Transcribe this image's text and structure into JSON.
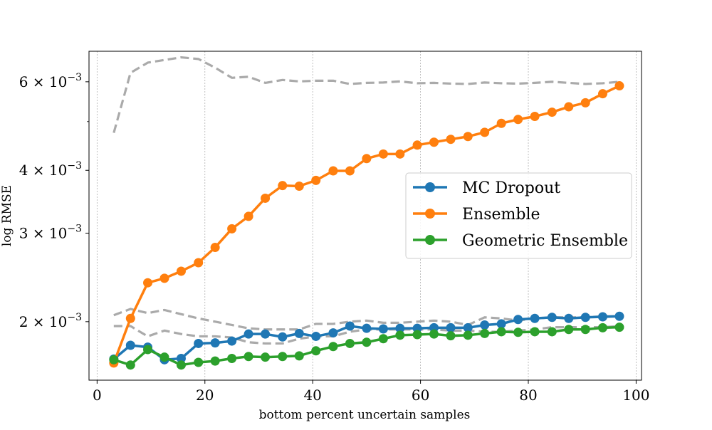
{
  "chart_data": {
    "type": "line",
    "title": "",
    "xlabel": "bottom percent uncertain samples",
    "ylabel": "log RMSE",
    "yscale": "log",
    "xlim": [
      -1.5,
      101
    ],
    "ylim": [
      0.00153,
      0.0069
    ],
    "grid": "vertical-dashed",
    "legend_position": "center-right",
    "x_ticks": [
      {
        "value": 0,
        "label": "0"
      },
      {
        "value": 20,
        "label": "20"
      },
      {
        "value": 40,
        "label": "40"
      },
      {
        "value": 60,
        "label": "60"
      },
      {
        "value": 80,
        "label": "80"
      },
      {
        "value": 100,
        "label": "100"
      }
    ],
    "y_ticks": [
      {
        "value": 0.002,
        "mantissa": "2",
        "base": "10",
        "exponent": "−3"
      },
      {
        "value": 0.003,
        "mantissa": "3",
        "base": "10",
        "exponent": "−3"
      },
      {
        "value": 0.004,
        "mantissa": "4",
        "base": "10",
        "exponent": "−3"
      },
      {
        "value": 0.006,
        "mantissa": "6",
        "base": "10",
        "exponent": "−3"
      }
    ],
    "y_minor_ticks": [
      0.005
    ],
    "x": [
      3.1,
      6.2,
      9.4,
      12.5,
      15.6,
      18.8,
      21.9,
      25.0,
      28.1,
      31.2,
      34.4,
      37.5,
      40.6,
      43.8,
      46.9,
      50.0,
      53.1,
      56.2,
      59.4,
      62.5,
      65.6,
      68.8,
      71.9,
      75.0,
      78.1,
      81.2,
      84.4,
      87.5,
      90.6,
      93.8,
      96.9
    ],
    "series": [
      {
        "name": "MC Dropout",
        "color": "#1f77b4",
        "values": [
          0.001685,
          0.001795,
          0.00178,
          0.00168,
          0.00169,
          0.00181,
          0.001815,
          0.00183,
          0.00189,
          0.00189,
          0.001865,
          0.001895,
          0.00187,
          0.0019,
          0.00196,
          0.00194,
          0.001935,
          0.00194,
          0.00194,
          0.001945,
          0.001945,
          0.001945,
          0.00197,
          0.00198,
          0.00202,
          0.00203,
          0.00204,
          0.00203,
          0.00204,
          0.002045,
          0.00205
        ]
      },
      {
        "name": "Ensemble",
        "color": "#ff7f0e",
        "values": [
          0.001655,
          0.00203,
          0.00239,
          0.00244,
          0.00252,
          0.00262,
          0.00281,
          0.00306,
          0.00324,
          0.00352,
          0.00373,
          0.00372,
          0.00382,
          0.00399,
          0.00399,
          0.00422,
          0.00431,
          0.00431,
          0.00449,
          0.00455,
          0.00461,
          0.00467,
          0.00476,
          0.00496,
          0.00505,
          0.00512,
          0.00522,
          0.00535,
          0.00545,
          0.00568,
          0.00589
        ]
      },
      {
        "name": "Geometric Ensemble",
        "color": "#2ca02c",
        "values": [
          0.00168,
          0.00164,
          0.00176,
          0.0017,
          0.00164,
          0.00166,
          0.00167,
          0.00169,
          0.001705,
          0.0017,
          0.001705,
          0.00171,
          0.00175,
          0.001785,
          0.00181,
          0.00182,
          0.00185,
          0.00188,
          0.001885,
          0.00189,
          0.001875,
          0.00188,
          0.001895,
          0.00191,
          0.001905,
          0.00191,
          0.00191,
          0.00193,
          0.00193,
          0.001945,
          0.00195
        ]
      }
    ],
    "reference_lines": [
      {
        "color": "#aaaaaa",
        "style": "dashed",
        "values": [
          0.00475,
          0.00625,
          0.00655,
          0.00663,
          0.00671,
          0.00666,
          0.0064,
          0.00611,
          0.00614,
          0.00597,
          0.00605,
          0.00601,
          0.00603,
          0.00603,
          0.00594,
          0.00597,
          0.00598,
          0.00601,
          0.00596,
          0.00597,
          0.00595,
          0.00594,
          0.00598,
          0.00596,
          0.00595,
          0.00597,
          0.006,
          0.00597,
          0.00594,
          0.00596,
          0.006
        ]
      },
      {
        "color": "#aaaaaa",
        "style": "dashed",
        "values": [
          0.00206,
          0.00212,
          0.00208,
          0.00211,
          0.00207,
          0.00203,
          0.002,
          0.00197,
          0.00194,
          0.00193,
          0.00193,
          0.00193,
          0.00198,
          0.00198,
          0.002,
          0.00201,
          0.00199,
          0.00199,
          0.002,
          0.00201,
          0.002,
          0.00197,
          0.00204,
          0.00203,
          0.00201,
          0.00203,
          0.00204,
          0.00204,
          0.00204,
          0.00205,
          0.00205
        ]
      },
      {
        "color": "#aaaaaa",
        "style": "dashed",
        "values": [
          0.00196,
          0.00196,
          0.00187,
          0.00192,
          0.00189,
          0.00187,
          0.00187,
          0.00186,
          0.00182,
          0.00181,
          0.00181,
          0.00185,
          0.00187,
          0.00187,
          0.00191,
          0.00193,
          0.00193,
          0.00193,
          0.00193,
          0.00193,
          0.00192,
          0.00192,
          0.00191,
          0.00191,
          0.00192,
          0.00193,
          0.00195,
          0.00195,
          0.00195,
          0.00195,
          0.00196
        ]
      }
    ]
  }
}
